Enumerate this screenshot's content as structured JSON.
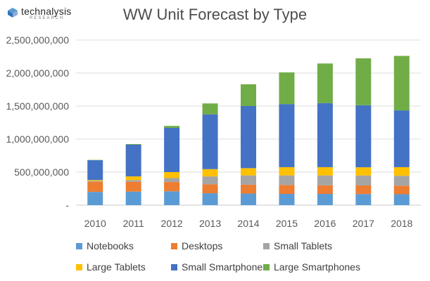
{
  "brand": {
    "name": "technalysis",
    "subtitle": "RESEARCH"
  },
  "chart_data": {
    "type": "bar",
    "stacked": true,
    "title": "WW Unit Forecast by Type",
    "xlabel": "",
    "ylabel": "",
    "categories": [
      "2010",
      "2011",
      "2012",
      "2013",
      "2014",
      "2015",
      "2016",
      "2017",
      "2018"
    ],
    "ylim": [
      0,
      2500000000
    ],
    "yticks": [
      0,
      500000000,
      1000000000,
      1500000000,
      2000000000,
      2500000000
    ],
    "ytick_labels": [
      "-",
      "500,000,000",
      "1,000,000,000",
      "1,500,000,000",
      "2,000,000,000",
      "2,500,000,000"
    ],
    "grid": true,
    "legend_position": "bottom",
    "series": [
      {
        "name": "Notebooks",
        "color": "#5B9BD5",
        "values": [
          200000000,
          205000000,
          210000000,
          180000000,
          175000000,
          170000000,
          170000000,
          168000000,
          165000000
        ]
      },
      {
        "name": "Desktops",
        "color": "#ED7D31",
        "values": [
          155000000,
          150000000,
          140000000,
          135000000,
          135000000,
          135000000,
          130000000,
          130000000,
          130000000
        ]
      },
      {
        "name": "Small Tablets",
        "color": "#A5A5A5",
        "values": [
          10000000,
          25000000,
          60000000,
          120000000,
          140000000,
          145000000,
          150000000,
          150000000,
          150000000
        ]
      },
      {
        "name": "Large Tablets",
        "color": "#FFC000",
        "values": [
          15000000,
          55000000,
          90000000,
          110000000,
          110000000,
          125000000,
          125000000,
          125000000,
          130000000
        ]
      },
      {
        "name": "Small Smartphones",
        "color": "#4472C4",
        "values": [
          300000000,
          480000000,
          670000000,
          830000000,
          940000000,
          955000000,
          970000000,
          940000000,
          860000000
        ]
      },
      {
        "name": "Large Smartphones",
        "color": "#70AD47",
        "values": [
          5000000,
          10000000,
          30000000,
          165000000,
          330000000,
          480000000,
          600000000,
          710000000,
          825000000
        ]
      }
    ]
  }
}
